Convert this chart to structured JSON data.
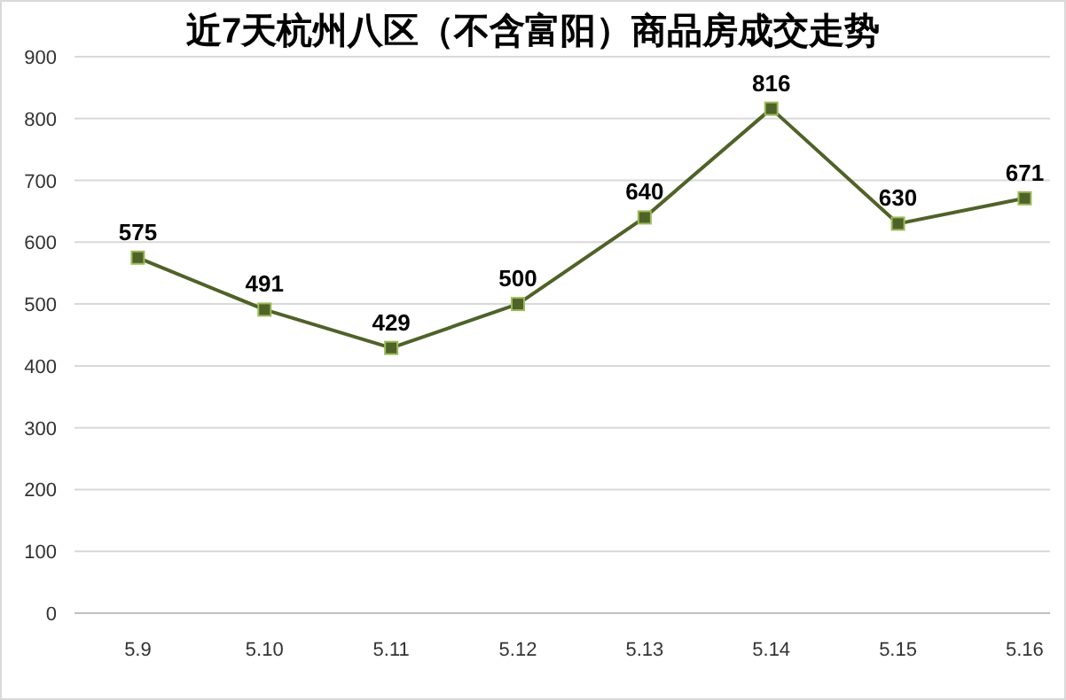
{
  "chart_data": {
    "type": "line",
    "title": "近7天杭州八区（不含富阳）商品房成交走势",
    "categories": [
      "5.9",
      "5.10",
      "5.11",
      "5.12",
      "5.13",
      "5.14",
      "5.15",
      "5.16"
    ],
    "series": [
      {
        "color": "#4f6228",
        "values": [
          575,
          491,
          429,
          500,
          640,
          816,
          630,
          671
        ]
      }
    ],
    "ylim": [
      0,
      900
    ],
    "yticks": [
      0,
      100,
      200,
      300,
      400,
      500,
      600,
      700,
      800,
      900
    ],
    "grid": "y",
    "marker": "square",
    "data_labels": true
  }
}
